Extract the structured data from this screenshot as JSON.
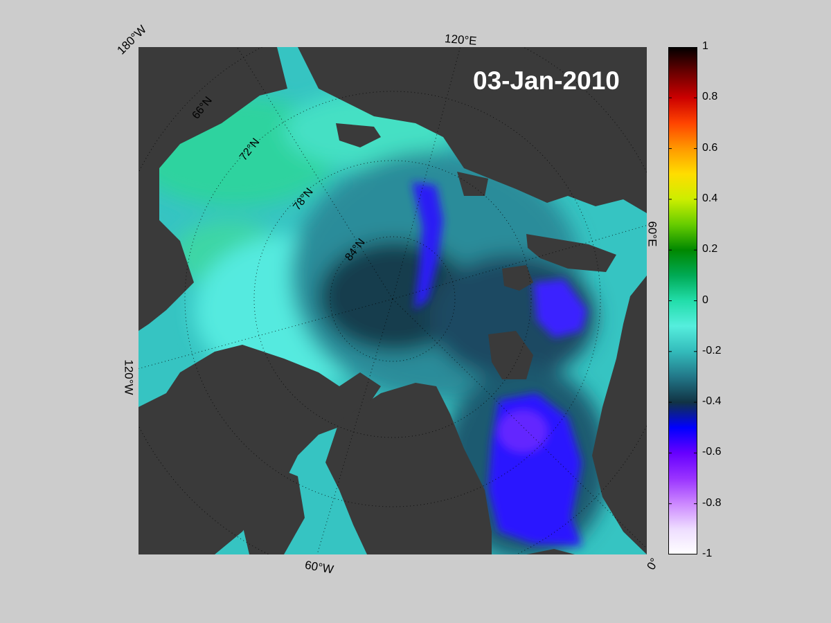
{
  "title": "03-Jan-2010",
  "longitude_labels": {
    "lon_180w": "180°W",
    "lon_120e": "120°E",
    "lon_60e": "60°E",
    "lon_120w": "120°W",
    "lon_60w": "60°W",
    "lon_0": "0°"
  },
  "latitude_labels": [
    "66°N",
    "72°N",
    "78°N",
    "84°N"
  ],
  "colorbar": {
    "min": -1,
    "max": 1,
    "ticks": [
      "1",
      "0.8",
      "0.6",
      "0.4",
      "0.2",
      "0",
      "-0.2",
      "-0.4",
      "-0.6",
      "-0.8",
      "-1"
    ],
    "colors_top_to_bottom": [
      "#000000",
      "#6b0000",
      "#cc0000",
      "#ff4400",
      "#ff9900",
      "#ffdd00",
      "#ccee00",
      "#66cc00",
      "#008800",
      "#00aa55",
      "#22ddaa",
      "#55eedd",
      "#33bbbb",
      "#227788",
      "#113344",
      "#0000ff",
      "#6600ff",
      "#9933ff",
      "#cc88ff",
      "#eeddff",
      "#ffffff"
    ]
  },
  "colors": {
    "background": "#cccccc",
    "land": "#3a3a3a",
    "missing": "#808080",
    "ocean_shallow": "#55eedd",
    "ocean_mid": "#2aa6ac",
    "ocean_deep": "#113a4a",
    "strong_negative": "#2a18ff",
    "near_zero": "#2fd5a0"
  }
}
